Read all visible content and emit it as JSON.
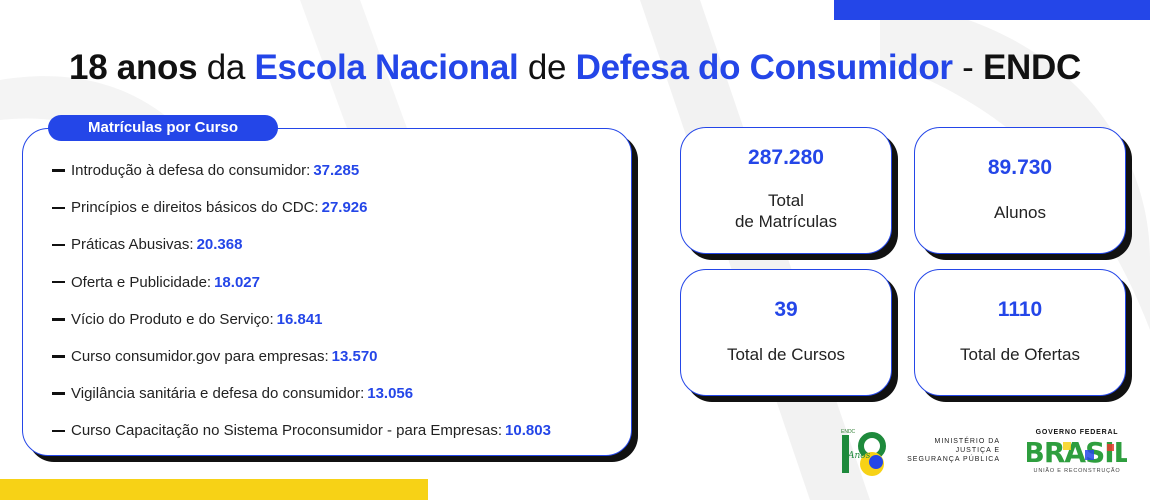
{
  "header": {
    "title_parts": {
      "p1": "18 anos",
      "p2": " da ",
      "p3": "Escola Nacional",
      "p4": " de ",
      "p5": "Defesa do Consumidor",
      "p6": " - ",
      "p7": "ENDC"
    }
  },
  "courses": {
    "label": "Matrículas por Curso",
    "items": [
      {
        "name": "Introdução à defesa do consumidor:",
        "value": "37.285"
      },
      {
        "name": "Princípios e direitos básicos do CDC:",
        "value": "27.926"
      },
      {
        "name": "Práticas Abusivas:",
        "value": "20.368"
      },
      {
        "name": "Oferta e Publicidade:",
        "value": "18.027"
      },
      {
        "name": "Vício do Produto e do Serviço:",
        "value": "16.841"
      },
      {
        "name": "Curso consumidor.gov para empresas:",
        "value": "13.570"
      },
      {
        "name": "Vigilância sanitária e defesa do consumidor:",
        "value": "13.056"
      },
      {
        "name": "Curso Capacitação no Sistema Proconsumidor - para Empresas:",
        "value": "10.803"
      }
    ]
  },
  "stats": {
    "total_enrollments": {
      "value": "287.280",
      "label_line1": "Total",
      "label_line2": "de Matrículas"
    },
    "students": {
      "value": "89.730",
      "label": "Alunos"
    },
    "courses": {
      "value": "39",
      "label": "Total de Cursos"
    },
    "offers": {
      "value": "1110",
      "label": "Total de Ofertas"
    }
  },
  "logos": {
    "endc_small": "ENDC",
    "endc_anos": "Anos",
    "ministry_line1": "MINISTÉRIO DA",
    "ministry_line2": "JUSTIÇA E",
    "ministry_line3": "SEGURANÇA PÚBLICA",
    "gov_federal": "GOVERNO FEDERAL",
    "brasil": "BRASIL",
    "gov_slogan": "UNIÃO E RECONSTRUÇÃO"
  },
  "colors": {
    "accent_blue": "#2446e8",
    "accent_yellow": "#f7d216",
    "shadow": "#111111"
  }
}
